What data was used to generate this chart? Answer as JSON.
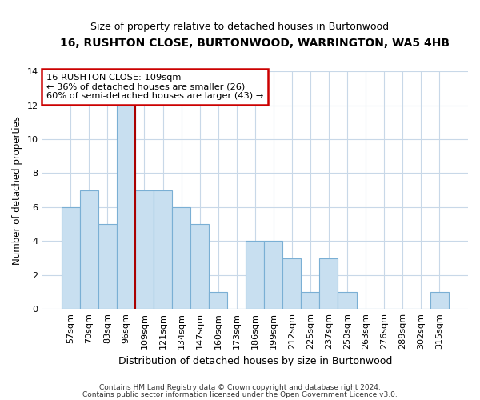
{
  "title": "16, RUSHTON CLOSE, BURTONWOOD, WARRINGTON, WA5 4HB",
  "subtitle": "Size of property relative to detached houses in Burtonwood",
  "xlabel": "Distribution of detached houses by size in Burtonwood",
  "ylabel": "Number of detached properties",
  "categories": [
    "57sqm",
    "70sqm",
    "83sqm",
    "96sqm",
    "109sqm",
    "121sqm",
    "134sqm",
    "147sqm",
    "160sqm",
    "173sqm",
    "186sqm",
    "199sqm",
    "212sqm",
    "225sqm",
    "237sqm",
    "250sqm",
    "263sqm",
    "276sqm",
    "289sqm",
    "302sqm",
    "315sqm"
  ],
  "values": [
    6,
    7,
    5,
    12,
    7,
    7,
    6,
    5,
    1,
    0,
    4,
    4,
    3,
    1,
    3,
    1,
    0,
    0,
    0,
    0,
    1
  ],
  "bar_color": "#c8dff0",
  "bar_edge_color": "#7aafd4",
  "highlight_index": 4,
  "vline_x": 3.5,
  "vline_color": "#aa0000",
  "ylim": [
    0,
    14
  ],
  "yticks": [
    0,
    2,
    4,
    6,
    8,
    10,
    12,
    14
  ],
  "annotation_title": "16 RUSHTON CLOSE: 109sqm",
  "annotation_line1": "← 36% of detached houses are smaller (26)",
  "annotation_line2": "60% of semi-detached houses are larger (43) →",
  "annotation_box_facecolor": "#ffffff",
  "annotation_box_edgecolor": "#cc0000",
  "footnote1": "Contains HM Land Registry data © Crown copyright and database right 2024.",
  "footnote2": "Contains public sector information licensed under the Open Government Licence v3.0.",
  "background_color": "#ffffff",
  "grid_color": "#c8d8e8"
}
